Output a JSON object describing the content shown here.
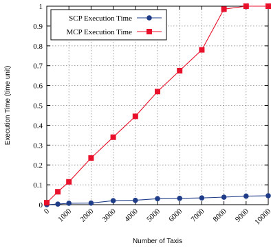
{
  "chart_data": {
    "type": "line",
    "xlabel": "Number of Taxis",
    "ylabel": "Execution Time (time unit)",
    "x_ticks": [
      "0",
      "1000",
      "2000",
      "3000",
      "4000",
      "5000",
      "6000",
      "7000",
      "8000",
      "9000",
      "10000"
    ],
    "y_ticks": [
      "0",
      "0.1",
      "0.2",
      "0.3",
      "0.4",
      "0.5",
      "0.6",
      "0.7",
      "0.8",
      "0.9",
      "1"
    ],
    "xlim": [
      0,
      10000
    ],
    "ylim": [
      0,
      1
    ],
    "grid": true,
    "legend_position": "top-left",
    "series": [
      {
        "name": "SCP Execution Time",
        "color": "#1f3c88",
        "marker": "circle",
        "x": [
          0,
          500,
          1000,
          2000,
          3000,
          4000,
          5000,
          6000,
          7000,
          8000,
          9000,
          10000
        ],
        "values": [
          0.0,
          0.003,
          0.007,
          0.008,
          0.02,
          0.022,
          0.03,
          0.032,
          0.034,
          0.038,
          0.043,
          0.045
        ]
      },
      {
        "name": "MCP Execution Time",
        "color": "#e8102a",
        "marker": "square",
        "x": [
          0,
          500,
          1000,
          2000,
          3000,
          4000,
          5000,
          6000,
          7000,
          8000,
          9000,
          10000
        ],
        "values": [
          0.01,
          0.065,
          0.115,
          0.235,
          0.34,
          0.445,
          0.57,
          0.675,
          0.78,
          0.985,
          1.0,
          1.0
        ]
      }
    ]
  }
}
